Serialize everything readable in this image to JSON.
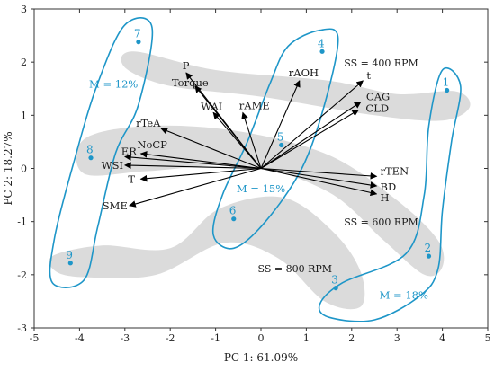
{
  "chart_data": {
    "type": "scatter",
    "subtype": "pca-biplot",
    "xlabel": "PC 1: 61.09%",
    "ylabel": "PC 2: 18.27%",
    "xlim": [
      -5,
      5
    ],
    "ylim": [
      -3,
      3
    ],
    "xticks": [
      -5,
      -4,
      -3,
      -2,
      -1,
      0,
      1,
      2,
      3,
      4,
      5
    ],
    "yticks": [
      -3,
      -2,
      -1,
      0,
      1,
      2,
      3
    ],
    "grid": false,
    "colors": {
      "blue": "#1e96c8",
      "band": "#d9d9d9",
      "arrow": "#000000",
      "frame": "#333333"
    },
    "points": [
      {
        "label": "1",
        "x": 4.1,
        "y": 1.47
      },
      {
        "label": "2",
        "x": 3.7,
        "y": -1.65
      },
      {
        "label": "3",
        "x": 1.65,
        "y": -2.25
      },
      {
        "label": "4",
        "x": 1.35,
        "y": 2.2
      },
      {
        "label": "5",
        "x": 0.45,
        "y": 0.44
      },
      {
        "label": "6",
        "x": -0.6,
        "y": -0.95
      },
      {
        "label": "7",
        "x": -2.7,
        "y": 2.38
      },
      {
        "label": "8",
        "x": -3.75,
        "y": 0.2
      },
      {
        "label": "9",
        "x": -4.2,
        "y": -1.78
      }
    ],
    "loadings": [
      {
        "label": "P",
        "x": -1.65,
        "y": 1.8
      },
      {
        "label": "Torque",
        "x": -1.45,
        "y": 1.55
      },
      {
        "label": "WAI",
        "x": -1.05,
        "y": 1.05
      },
      {
        "label": "rAME",
        "x": -0.4,
        "y": 1.05
      },
      {
        "label": "rTeA",
        "x": -2.2,
        "y": 0.75
      },
      {
        "label": "ER",
        "x": -3.0,
        "y": 0.22
      },
      {
        "label": "NoCP",
        "x": -2.65,
        "y": 0.28
      },
      {
        "label": "WSI",
        "x": -3.0,
        "y": 0.06
      },
      {
        "label": "T",
        "x": -2.65,
        "y": -0.2
      },
      {
        "label": "SME",
        "x": -2.9,
        "y": -0.7
      },
      {
        "label": "rAOH",
        "x": 0.85,
        "y": 1.65
      },
      {
        "label": "t",
        "x": 2.25,
        "y": 1.65
      },
      {
        "label": "CAG",
        "x": 2.2,
        "y": 1.25
      },
      {
        "label": "CLD",
        "x": 2.15,
        "y": 1.1
      },
      {
        "label": "rTEN",
        "x": 2.55,
        "y": -0.15
      },
      {
        "label": "BD",
        "x": 2.55,
        "y": -0.33
      },
      {
        "label": "H",
        "x": 2.55,
        "y": -0.48
      }
    ],
    "annotations": [
      {
        "text": "SS = 400 RPM",
        "x": 2.65,
        "y": 1.92
      },
      {
        "text": "SS = 600 RPM",
        "x": 2.65,
        "y": -1.07
      },
      {
        "text": "SS = 800 RPM",
        "x": 0.75,
        "y": -1.95
      },
      {
        "text": "M = 12%",
        "x": -3.25,
        "y": 1.52,
        "color": "blue"
      },
      {
        "text": "M = 15%",
        "x": 0.0,
        "y": -0.45,
        "color": "blue"
      },
      {
        "text": "M = 18%",
        "x": 3.15,
        "y": -2.45,
        "color": "blue"
      }
    ],
    "speed_bands": [
      {
        "name": "SS = 400 RPM",
        "path": [
          [
            -2.8,
            2.2
          ],
          [
            -1,
            1.85
          ],
          [
            1.5,
            1.65
          ],
          [
            3,
            1.4
          ],
          [
            4.3,
            1.45
          ],
          [
            4.6,
            1.15
          ],
          [
            4.0,
            0.9
          ],
          [
            2.5,
            1.0
          ],
          [
            0,
            1.35
          ],
          [
            -2,
            1.55
          ],
          [
            -3.0,
            1.9
          ]
        ]
      },
      {
        "name": "SS = 600 RPM",
        "path": [
          [
            -3.9,
            0.55
          ],
          [
            -2.5,
            0.8
          ],
          [
            -0.5,
            0.7
          ],
          [
            1.5,
            0.25
          ],
          [
            3.0,
            -0.6
          ],
          [
            3.9,
            -1.35
          ],
          [
            4.0,
            -1.85
          ],
          [
            3.6,
            -2.0
          ],
          [
            2.7,
            -1.35
          ],
          [
            1.5,
            -0.45
          ],
          [
            -0.3,
            0.05
          ],
          [
            -2.5,
            -0.05
          ],
          [
            -3.9,
            -0.1
          ]
        ]
      },
      {
        "name": "SS = 800 RPM",
        "path": [
          [
            -4.5,
            -1.95
          ],
          [
            -4.6,
            -1.65
          ],
          [
            -3.5,
            -1.45
          ],
          [
            -2,
            -1.5
          ],
          [
            -0.9,
            -0.75
          ],
          [
            0.5,
            -0.55
          ],
          [
            1.6,
            -1.2
          ],
          [
            2.2,
            -1.95
          ],
          [
            2.2,
            -2.6
          ],
          [
            1.4,
            -2.5
          ],
          [
            0.4,
            -1.7
          ],
          [
            -0.8,
            -1.4
          ],
          [
            -2.3,
            -2.0
          ],
          [
            -3.8,
            -2.05
          ]
        ]
      }
    ],
    "moisture_regions": [
      {
        "name": "M = 12%",
        "path": [
          [
            -3.0,
            2.7
          ],
          [
            -2.4,
            2.65
          ],
          [
            -2.7,
            1.2
          ],
          [
            -3.2,
            0.3
          ],
          [
            -3.6,
            -1.1
          ],
          [
            -3.9,
            -2.1
          ],
          [
            -4.6,
            -2.15
          ],
          [
            -4.55,
            -1.3
          ],
          [
            -4.1,
            0.2
          ],
          [
            -3.6,
            1.6
          ]
        ]
      },
      {
        "name": "M = 15%",
        "path": [
          [
            1.3,
            2.6
          ],
          [
            1.7,
            2.45
          ],
          [
            1.4,
            1.2
          ],
          [
            0.9,
            0.0
          ],
          [
            0.1,
            -1.0
          ],
          [
            -0.6,
            -1.5
          ],
          [
            -1.05,
            -1.25
          ],
          [
            -0.85,
            -0.5
          ],
          [
            -0.3,
            0.5
          ],
          [
            0.2,
            1.6
          ],
          [
            0.6,
            2.3
          ]
        ]
      },
      {
        "name": "M = 18%",
        "path": [
          [
            4.0,
            1.85
          ],
          [
            4.4,
            1.55
          ],
          [
            4.2,
            0.5
          ],
          [
            4.0,
            -0.8
          ],
          [
            3.9,
            -1.9
          ],
          [
            3.5,
            -2.4
          ],
          [
            2.5,
            -2.85
          ],
          [
            1.5,
            -2.8
          ],
          [
            1.3,
            -2.55
          ],
          [
            1.8,
            -2.15
          ],
          [
            3.2,
            -1.6
          ],
          [
            3.6,
            -0.5
          ],
          [
            3.7,
            0.8
          ]
        ]
      }
    ]
  }
}
